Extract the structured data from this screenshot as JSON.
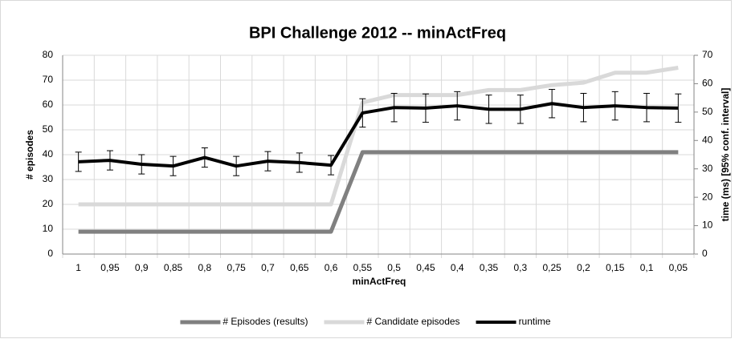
{
  "chart_data": {
    "type": "line",
    "title": "BPI Challenge 2012 -- minActFreq",
    "x_label": "minActFreq",
    "y_label": "# episodes",
    "y2_label": "time (ms) [95% conf. interval]",
    "categories": [
      "1",
      "0,95",
      "0,9",
      "0,85",
      "0,8",
      "0,75",
      "0,7",
      "0,65",
      "0,6",
      "0,55",
      "0,5",
      "0,45",
      "0,4",
      "0,35",
      "0,3",
      "0,25",
      "0,2",
      "0,15",
      "0,1",
      "0,05"
    ],
    "ylim": [
      0,
      80
    ],
    "yticks": [
      0,
      10,
      20,
      30,
      40,
      50,
      60,
      70,
      80
    ],
    "y2lim": [
      0,
      70
    ],
    "y2ticks": [
      0,
      10,
      20,
      30,
      40,
      50,
      60,
      70
    ],
    "grid": true,
    "legend": "bottom",
    "series": [
      {
        "name": "# Episodes (results)",
        "color": "#808080",
        "values": [
          9,
          9,
          9,
          9,
          9,
          9,
          9,
          9,
          9,
          41,
          41,
          41,
          41,
          41,
          41,
          41,
          41,
          41,
          41,
          41
        ]
      },
      {
        "name": "# Candidate episodes",
        "color": "#d9d9d9",
        "values": [
          20,
          20,
          20,
          20,
          20,
          20,
          20,
          20,
          20,
          61,
          64,
          64,
          64,
          66,
          66,
          68,
          69,
          73,
          73,
          75
        ]
      },
      {
        "name": "runtime",
        "color": "#000000",
        "axis": "y2",
        "values": [
          32.5,
          33,
          31.6,
          31,
          34,
          31,
          32.7,
          32.2,
          31.3,
          49.7,
          51.6,
          51.4,
          52.2,
          51,
          51,
          53,
          51.6,
          52.2,
          51.6,
          51.4
        ],
        "errors": [
          3.4,
          3.4,
          3.4,
          3.4,
          3.4,
          3.4,
          3.4,
          3.4,
          3.4,
          5,
          5,
          5,
          5,
          5,
          5,
          5,
          5,
          5,
          5,
          5
        ]
      }
    ]
  }
}
